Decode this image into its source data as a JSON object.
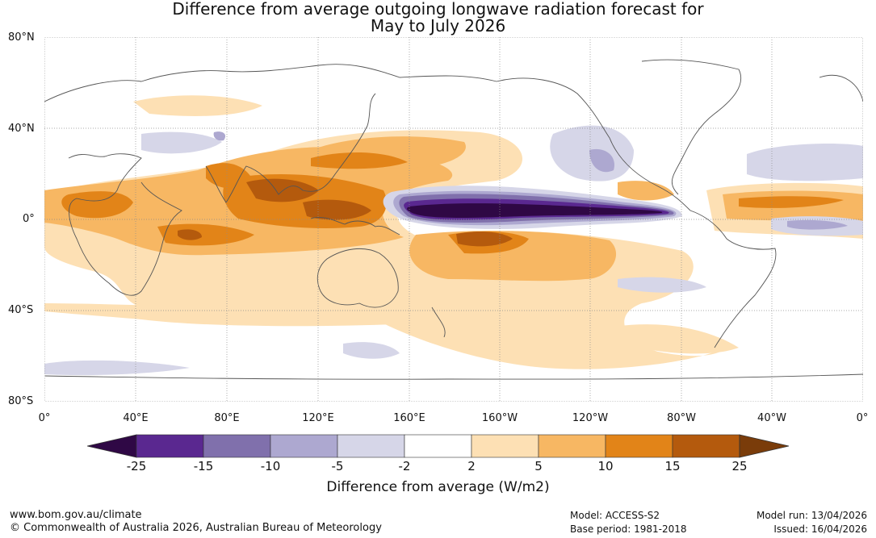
{
  "title": {
    "line1": "Difference from average outgoing longwave radiation forecast for",
    "line2": "May to July 2026"
  },
  "lat_labels": [
    "80°N",
    "40°N",
    "0°",
    "40°S",
    "80°S"
  ],
  "lon_labels": [
    "0°",
    "40°E",
    "80°E",
    "120°E",
    "160°E",
    "160°W",
    "120°W",
    "80°W",
    "40°W",
    "0°"
  ],
  "colorbar": {
    "ticks": [
      "-25",
      "-15",
      "-10",
      "-5",
      "-2",
      "2",
      "5",
      "10",
      "15",
      "25"
    ],
    "colors": [
      "#2f0845",
      "#5a2890",
      "#8070ac",
      "#ada8d0",
      "#d6d6e8",
      "#ffffff",
      "#fde0b4",
      "#f7b763",
      "#e28418",
      "#b45a0d",
      "#7a3c0a"
    ],
    "label": "Difference from average (W/m2)"
  },
  "footer": {
    "website": "www.bom.gov.au/climate",
    "copyright": "© Commonwealth of Australia 2026, Australian Bureau of Meteorology",
    "model": "Model: ACCESS-S2",
    "base_period": "Base period: 1981-2018",
    "model_run": "Model run: 13/04/2026",
    "issued": "Issued: 16/04/2026"
  },
  "map_features": [
    {
      "kind": "negative-anomaly",
      "name": "equatorial central-east Pacific",
      "level": "-25"
    },
    {
      "kind": "positive-anomaly",
      "name": "Maritime Continent / Indian Ocean",
      "level": "15"
    },
    {
      "kind": "positive-anomaly",
      "name": "South Pacific",
      "level": "15"
    },
    {
      "kind": "positive-anomaly",
      "name": "tropical Atlantic / Africa",
      "level": "10"
    }
  ]
}
